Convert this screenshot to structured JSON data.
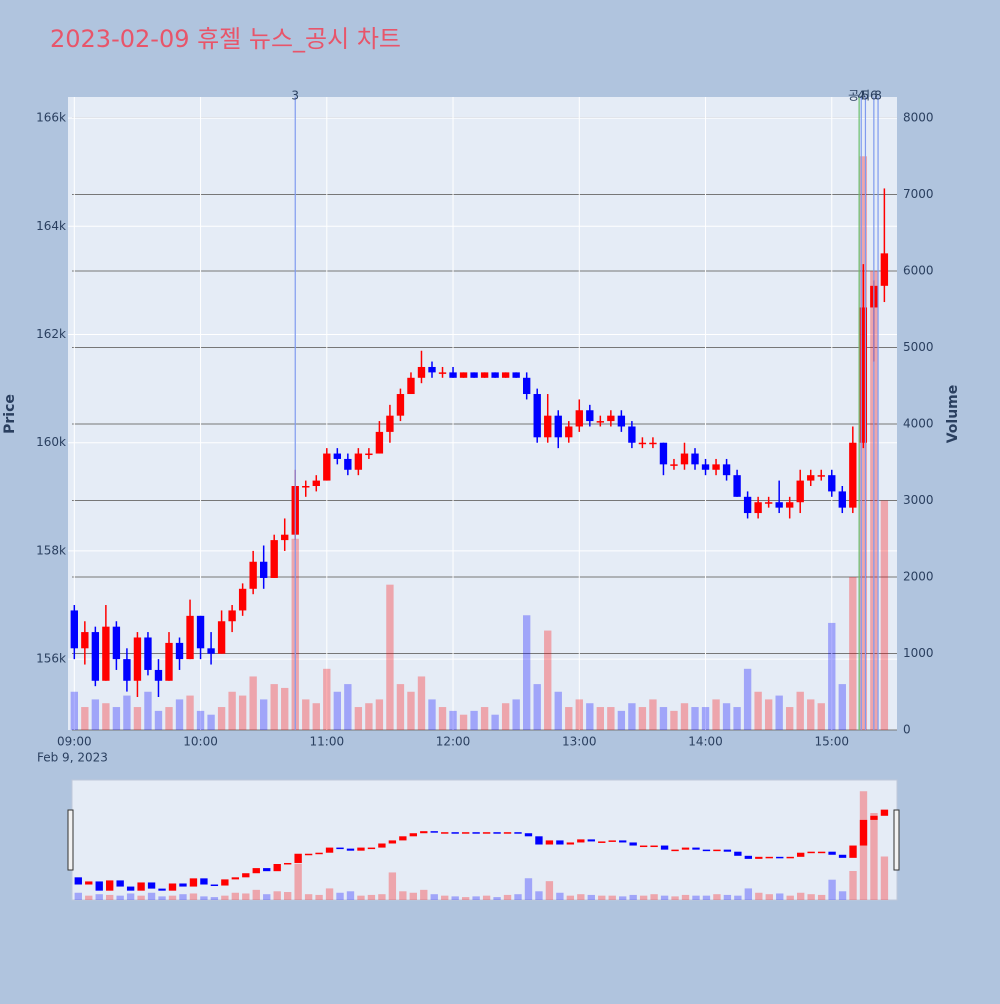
{
  "chart_data": {
    "type": "candlestick",
    "title": "2023-02-09 휴젤 뉴스_공시 차트",
    "y_label": "Price",
    "y2_label": "Volume",
    "x_sublabel": "Feb 9, 2023",
    "x": [
      "09:00",
      "09:05",
      "09:10",
      "09:15",
      "09:20",
      "09:25",
      "09:30",
      "09:35",
      "09:40",
      "09:45",
      "09:50",
      "09:55",
      "10:00",
      "10:05",
      "10:10",
      "10:15",
      "10:20",
      "10:25",
      "10:30",
      "10:35",
      "10:40",
      "10:45",
      "10:50",
      "10:55",
      "11:00",
      "11:05",
      "11:10",
      "11:15",
      "11:20",
      "11:25",
      "11:30",
      "11:35",
      "11:40",
      "11:45",
      "11:50",
      "11:55",
      "12:00",
      "12:05",
      "12:10",
      "12:15",
      "12:20",
      "12:25",
      "12:30",
      "12:35",
      "12:40",
      "12:45",
      "12:50",
      "12:55",
      "13:00",
      "13:05",
      "13:10",
      "13:15",
      "13:20",
      "13:25",
      "13:30",
      "13:35",
      "13:40",
      "13:45",
      "13:50",
      "13:55",
      "14:00",
      "14:05",
      "14:10",
      "14:15",
      "14:20",
      "14:25",
      "14:30",
      "14:35",
      "14:40",
      "14:45",
      "14:50",
      "14:55",
      "15:00",
      "15:05",
      "15:10",
      "15:15",
      "15:20",
      "15:25"
    ],
    "open": [
      156900,
      156200,
      156500,
      155600,
      156600,
      156000,
      155600,
      156400,
      155800,
      155600,
      156300,
      156000,
      156800,
      156200,
      156100,
      156700,
      156900,
      157300,
      157800,
      157500,
      158200,
      158300,
      159200,
      159200,
      159300,
      159800,
      159700,
      159500,
      159800,
      159800,
      160200,
      160500,
      160900,
      161200,
      161400,
      161300,
      161300,
      161200,
      161300,
      161200,
      161300,
      161200,
      161300,
      161200,
      160900,
      160100,
      160500,
      160100,
      160300,
      160600,
      160400,
      160400,
      160500,
      160300,
      160000,
      160000,
      160000,
      159600,
      159600,
      159800,
      159600,
      159500,
      159600,
      159400,
      159000,
      158700,
      158900,
      158900,
      158800,
      158900,
      159300,
      159400,
      159400,
      159100,
      158800,
      160000,
      162500,
      162900
    ],
    "high": [
      157000,
      156700,
      156600,
      157000,
      156700,
      156200,
      156500,
      156500,
      156000,
      156500,
      156400,
      157100,
      156800,
      156500,
      156900,
      157000,
      157400,
      158000,
      158100,
      158300,
      158600,
      159500,
      159300,
      159400,
      159900,
      159900,
      159800,
      159900,
      159900,
      160400,
      160700,
      161000,
      161300,
      161700,
      161500,
      161400,
      161400,
      161300,
      161300,
      161300,
      161300,
      161300,
      161300,
      161300,
      161000,
      160900,
      160600,
      160400,
      160800,
      160700,
      160500,
      160600,
      160600,
      160400,
      160100,
      160100,
      160000,
      159700,
      160000,
      159900,
      159700,
      159700,
      159700,
      159500,
      159100,
      159000,
      159000,
      159300,
      159000,
      159500,
      159500,
      159500,
      159500,
      159200,
      160300,
      163300,
      163000,
      164700
    ],
    "low": [
      156000,
      155900,
      155500,
      155600,
      155800,
      155400,
      155300,
      155700,
      155300,
      155600,
      155800,
      156000,
      156000,
      155900,
      156100,
      156500,
      156800,
      157200,
      157300,
      157500,
      158000,
      158200,
      159000,
      159100,
      159300,
      159600,
      159400,
      159400,
      159700,
      159800,
      160000,
      160400,
      160900,
      161100,
      161200,
      161200,
      161200,
      161200,
      161200,
      161200,
      161200,
      161200,
      161200,
      160800,
      160000,
      160000,
      159900,
      160000,
      160200,
      160300,
      160300,
      160300,
      160200,
      159900,
      159900,
      159900,
      159400,
      159500,
      159500,
      159500,
      159400,
      159400,
      159300,
      159000,
      158600,
      158600,
      158800,
      158700,
      158600,
      158700,
      159200,
      159300,
      159000,
      158700,
      158700,
      159900,
      161500,
      162600
    ],
    "close": [
      156200,
      156500,
      155600,
      156600,
      156000,
      155600,
      156400,
      155800,
      155600,
      156300,
      156000,
      156800,
      156200,
      156100,
      156700,
      156900,
      157300,
      157800,
      157500,
      158200,
      158300,
      159200,
      159200,
      159300,
      159800,
      159700,
      159500,
      159800,
      159800,
      160200,
      160500,
      160900,
      161200,
      161400,
      161300,
      161300,
      161200,
      161300,
      161200,
      161300,
      161200,
      161300,
      161200,
      160900,
      160100,
      160500,
      160100,
      160300,
      160600,
      160400,
      160400,
      160500,
      160300,
      160000,
      160000,
      160000,
      159600,
      159600,
      159800,
      159600,
      159500,
      159600,
      159400,
      159000,
      158700,
      158900,
      158900,
      158800,
      158900,
      159300,
      159400,
      159400,
      159100,
      158800,
      160000,
      162500,
      162900,
      163500
    ],
    "volume": [
      500,
      300,
      400,
      350,
      300,
      450,
      300,
      500,
      250,
      300,
      400,
      450,
      250,
      200,
      300,
      500,
      450,
      700,
      400,
      600,
      550,
      2500,
      400,
      350,
      800,
      500,
      600,
      300,
      350,
      400,
      1900,
      600,
      500,
      700,
      400,
      300,
      250,
      200,
      250,
      300,
      200,
      350,
      400,
      1500,
      600,
      1300,
      500,
      300,
      400,
      350,
      300,
      300,
      250,
      350,
      300,
      400,
      300,
      250,
      350,
      300,
      300,
      400,
      350,
      300,
      800,
      500,
      400,
      450,
      300,
      500,
      400,
      350,
      1400,
      600,
      2000,
      7500,
      6000,
      3000
    ],
    "increasing_color": "#ff0000",
    "decreasing_color": "#0000ff",
    "xlim": [
      "08:57",
      "15:31"
    ],
    "xticks": [
      "09:00",
      "10:00",
      "11:00",
      "12:00",
      "13:00",
      "14:00",
      "15:00"
    ],
    "ylim": [
      154690,
      166390
    ],
    "yticks": [
      {
        "value": 156000,
        "label": "156k"
      },
      {
        "value": 158000,
        "label": "158k"
      },
      {
        "value": 160000,
        "label": "160k"
      },
      {
        "value": 162000,
        "label": "162k"
      },
      {
        "value": 164000,
        "label": "164k"
      },
      {
        "value": 166000,
        "label": "166k"
      }
    ],
    "y2lim": [
      0,
      8275
    ],
    "y2ticks": [
      0,
      1000,
      2000,
      3000,
      4000,
      5000,
      6000,
      7000,
      8000
    ],
    "annotations": [
      {
        "x": "10:45",
        "label": "3",
        "color": "#7f9bef"
      },
      {
        "x": "15:13",
        "label": "공시",
        "color": "#6abf6a"
      },
      {
        "x": "15:14",
        "label": "4",
        "color": "#7f9bef"
      },
      {
        "x": "15:16",
        "label": "5",
        "color": "#7f9bef"
      },
      {
        "x": "15:20",
        "label": "6",
        "color": "#7f9bef"
      },
      {
        "x": "15:22",
        "label": "8",
        "color": "#7f9bef"
      }
    ]
  }
}
